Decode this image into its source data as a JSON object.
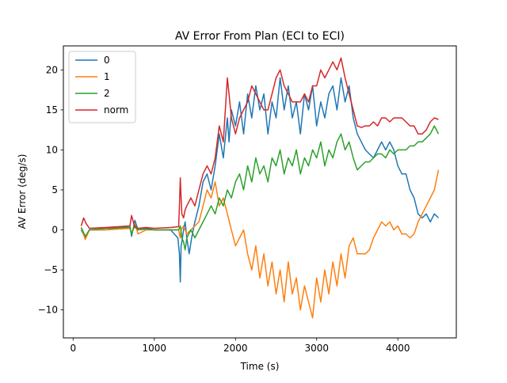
{
  "chart_data": {
    "type": "line",
    "title": "AV Error From Plan (ECI to ECI)",
    "xlabel": "Time (s)",
    "ylabel": "AV Error (deg/s)",
    "xlim": [
      -120,
      4720
    ],
    "ylim": [
      -13.5,
      23
    ],
    "xticks": [
      0,
      1000,
      2000,
      3000,
      4000
    ],
    "yticks": [
      -10,
      -5,
      0,
      5,
      10,
      15,
      20
    ],
    "grid": false,
    "legend_position": "top-left",
    "series": [
      {
        "name": "0",
        "color": "#1f77b4",
        "x": [
          100,
          150,
          200,
          400,
          700,
          720,
          760,
          800,
          900,
          1000,
          1200,
          1290,
          1310,
          1320,
          1330,
          1340,
          1360,
          1380,
          1400,
          1430,
          1460,
          1500,
          1550,
          1600,
          1650,
          1700,
          1750,
          1800,
          1850,
          1900,
          1920,
          1950,
          2000,
          2050,
          2100,
          2150,
          2200,
          2250,
          2300,
          2350,
          2400,
          2450,
          2500,
          2550,
          2600,
          2650,
          2700,
          2750,
          2800,
          2850,
          2900,
          2950,
          3000,
          3050,
          3100,
          3150,
          3200,
          3250,
          3300,
          3350,
          3400,
          3450,
          3500,
          3550,
          3600,
          3650,
          3700,
          3750,
          3800,
          3850,
          3900,
          3950,
          4000,
          4050,
          4100,
          4150,
          4200,
          4250,
          4300,
          4350,
          4400,
          4450,
          4500
        ],
        "y": [
          0,
          -1,
          0,
          0,
          0.5,
          -0.8,
          1.2,
          0,
          0.2,
          0,
          0,
          -1,
          -3,
          -6.5,
          -2,
          -1.5,
          0,
          1,
          -1,
          -3,
          -1,
          1,
          3,
          6,
          7,
          5,
          8,
          12,
          9,
          14,
          11,
          15,
          13,
          16,
          12,
          17,
          14,
          18,
          15,
          17,
          12,
          16,
          14,
          19,
          15,
          18,
          14,
          16,
          12,
          17,
          15,
          18,
          13,
          16,
          14,
          17,
          18,
          15,
          19,
          16,
          18,
          14,
          12,
          11,
          10,
          9.5,
          9,
          10,
          11,
          10,
          11,
          10,
          8,
          7,
          7,
          5,
          4,
          2,
          1.5,
          2,
          1,
          2,
          1.5
        ]
      },
      {
        "name": "1",
        "color": "#ff7f0e",
        "x": [
          100,
          150,
          200,
          400,
          700,
          720,
          760,
          800,
          900,
          1000,
          1200,
          1300,
          1320,
          1330,
          1360,
          1400,
          1450,
          1500,
          1550,
          1600,
          1650,
          1700,
          1750,
          1800,
          1850,
          1900,
          1950,
          2000,
          2050,
          2100,
          2150,
          2200,
          2250,
          2300,
          2350,
          2400,
          2450,
          2500,
          2550,
          2600,
          2650,
          2700,
          2750,
          2800,
          2850,
          2900,
          2950,
          3000,
          3050,
          3100,
          3150,
          3200,
          3250,
          3300,
          3350,
          3400,
          3450,
          3500,
          3550,
          3600,
          3650,
          3700,
          3750,
          3800,
          3850,
          3900,
          3950,
          4000,
          4050,
          4100,
          4150,
          4200,
          4250,
          4300,
          4350,
          4400,
          4450,
          4500
        ],
        "y": [
          0.3,
          -1.2,
          0,
          0,
          0.2,
          -0.5,
          0.8,
          -0.5,
          0,
          0,
          0,
          0,
          -1,
          0,
          0.5,
          -0.5,
          0,
          0.5,
          1,
          3,
          5,
          4,
          6,
          3,
          4,
          2,
          0,
          -2,
          -1,
          0,
          -3,
          -5,
          -2,
          -6,
          -3,
          -7,
          -4,
          -8,
          -5,
          -9,
          -4,
          -8,
          -6,
          -10,
          -7,
          -9,
          -11,
          -6,
          -9,
          -5,
          -8,
          -4,
          -7,
          -3,
          -6,
          -2,
          -1,
          -3,
          -3,
          -3,
          -2.5,
          -1,
          0,
          1,
          0.5,
          1,
          0,
          0.5,
          -0.5,
          -0.5,
          -1,
          -0.5,
          1,
          2,
          3,
          4,
          5,
          7.5
        ]
      },
      {
        "name": "2",
        "color": "#2ca02c",
        "x": [
          100,
          150,
          200,
          400,
          700,
          720,
          760,
          800,
          900,
          1000,
          1200,
          1300,
          1320,
          1340,
          1360,
          1380,
          1400,
          1450,
          1500,
          1550,
          1600,
          1650,
          1700,
          1750,
          1800,
          1850,
          1900,
          1950,
          2000,
          2050,
          2100,
          2150,
          2200,
          2250,
          2300,
          2350,
          2400,
          2450,
          2500,
          2550,
          2600,
          2650,
          2700,
          2750,
          2800,
          2850,
          2900,
          2950,
          3000,
          3050,
          3100,
          3150,
          3200,
          3250,
          3300,
          3350,
          3400,
          3450,
          3500,
          3550,
          3600,
          3650,
          3700,
          3750,
          3800,
          3850,
          3900,
          3950,
          4000,
          4050,
          4100,
          4150,
          4200,
          4250,
          4300,
          4350,
          4400,
          4450,
          4500
        ],
        "y": [
          0.3,
          -0.8,
          0,
          0.2,
          0.3,
          -0.5,
          0.6,
          0,
          0.1,
          0,
          0,
          0,
          0.5,
          -1,
          -1.5,
          -2.5,
          -1,
          0,
          -1,
          0,
          1,
          2,
          3,
          2,
          4,
          3,
          5,
          4,
          6,
          7,
          5,
          8,
          6,
          9,
          7,
          8,
          6,
          9,
          8,
          10,
          7,
          9,
          8,
          10,
          7,
          9,
          8,
          10,
          9,
          11,
          8,
          10,
          9,
          11,
          12,
          10,
          11,
          9,
          7.5,
          8,
          8.5,
          8.5,
          9,
          9.5,
          9.5,
          9,
          10,
          9.5,
          10,
          10,
          10,
          10.5,
          10.5,
          11,
          11,
          11.5,
          12,
          13,
          12
        ]
      },
      {
        "name": "norm",
        "color": "#d62728",
        "x": [
          100,
          130,
          160,
          200,
          400,
          700,
          720,
          760,
          800,
          900,
          1000,
          1200,
          1300,
          1310,
          1320,
          1330,
          1340,
          1360,
          1380,
          1400,
          1450,
          1500,
          1550,
          1600,
          1650,
          1700,
          1750,
          1800,
          1850,
          1900,
          1920,
          1950,
          2000,
          2050,
          2100,
          2150,
          2200,
          2250,
          2300,
          2350,
          2400,
          2450,
          2500,
          2550,
          2600,
          2650,
          2700,
          2750,
          2800,
          2850,
          2900,
          2950,
          3000,
          3050,
          3100,
          3150,
          3200,
          3250,
          3300,
          3350,
          3400,
          3450,
          3500,
          3550,
          3600,
          3650,
          3700,
          3750,
          3800,
          3850,
          3900,
          3950,
          4000,
          4050,
          4100,
          4150,
          4200,
          4250,
          4300,
          4350,
          4400,
          4450,
          4500
        ],
        "y": [
          0.5,
          1.5,
          0.8,
          0.2,
          0.3,
          0.5,
          1.8,
          0.3,
          0.2,
          0.3,
          0.2,
          0.3,
          0.4,
          3,
          6.5,
          4,
          2,
          1.5,
          2.5,
          3,
          4,
          3,
          5,
          7,
          8,
          7,
          9,
          13,
          11,
          19,
          17,
          14,
          12,
          14,
          15,
          16,
          18,
          17,
          16,
          15,
          15,
          17,
          19,
          20,
          18,
          17,
          16,
          16,
          16,
          17,
          16,
          18,
          18,
          20,
          19,
          20,
          21,
          20,
          21.5,
          19,
          17,
          15,
          13,
          12.8,
          13,
          13,
          13.5,
          13,
          14,
          14,
          13.5,
          14,
          14,
          14,
          13.5,
          13,
          13,
          12,
          12,
          12.5,
          13.5,
          14,
          13.8
        ]
      }
    ]
  }
}
